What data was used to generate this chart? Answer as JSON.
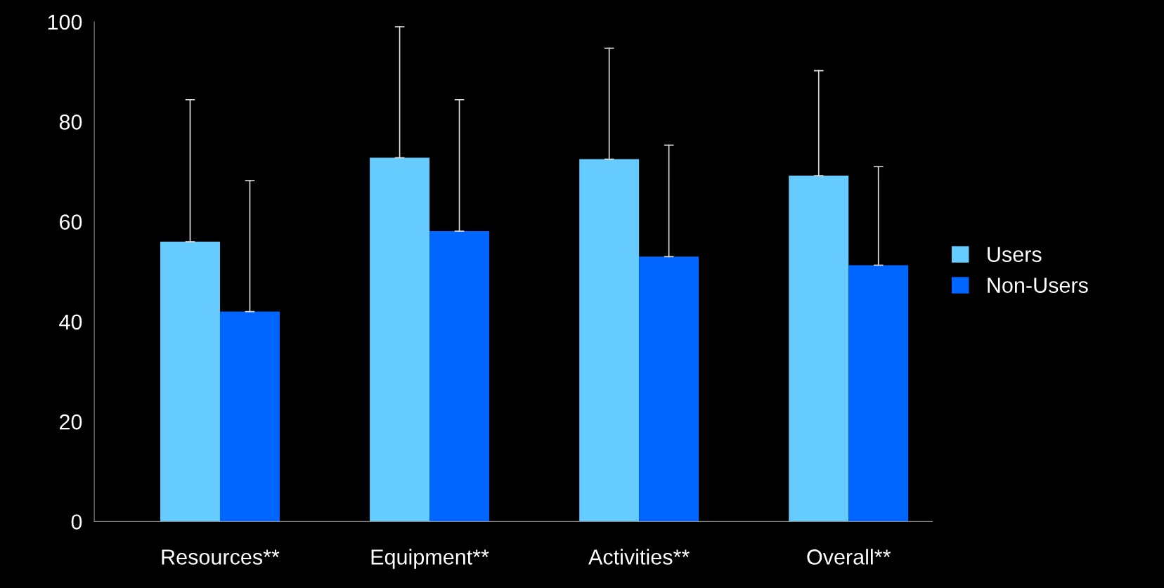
{
  "chart_data": {
    "type": "bar",
    "categories": [
      "Resources**",
      "Equipment**",
      "Activities**",
      "Overall**"
    ],
    "series": [
      {
        "name": "Users",
        "color": "#66ccff",
        "values": [
          56.0,
          72.8,
          72.5,
          69.2
        ],
        "errors": [
          [
            56.0,
            84.4
          ],
          [
            72.8,
            99.0
          ],
          [
            72.5,
            94.7
          ],
          [
            69.2,
            90.2
          ]
        ]
      },
      {
        "name": "Non-Users",
        "color": "#0066ff",
        "values": [
          42.0,
          58.1,
          53.0,
          51.3
        ],
        "errors": [
          [
            42.0,
            68.2
          ],
          [
            58.1,
            84.4
          ],
          [
            53.0,
            75.3
          ],
          [
            51.3,
            71.0
          ]
        ]
      }
    ],
    "ylim": [
      0,
      100
    ],
    "yticks": [
      0,
      20,
      40,
      60,
      80,
      100
    ],
    "grid": false,
    "legend": "right"
  }
}
